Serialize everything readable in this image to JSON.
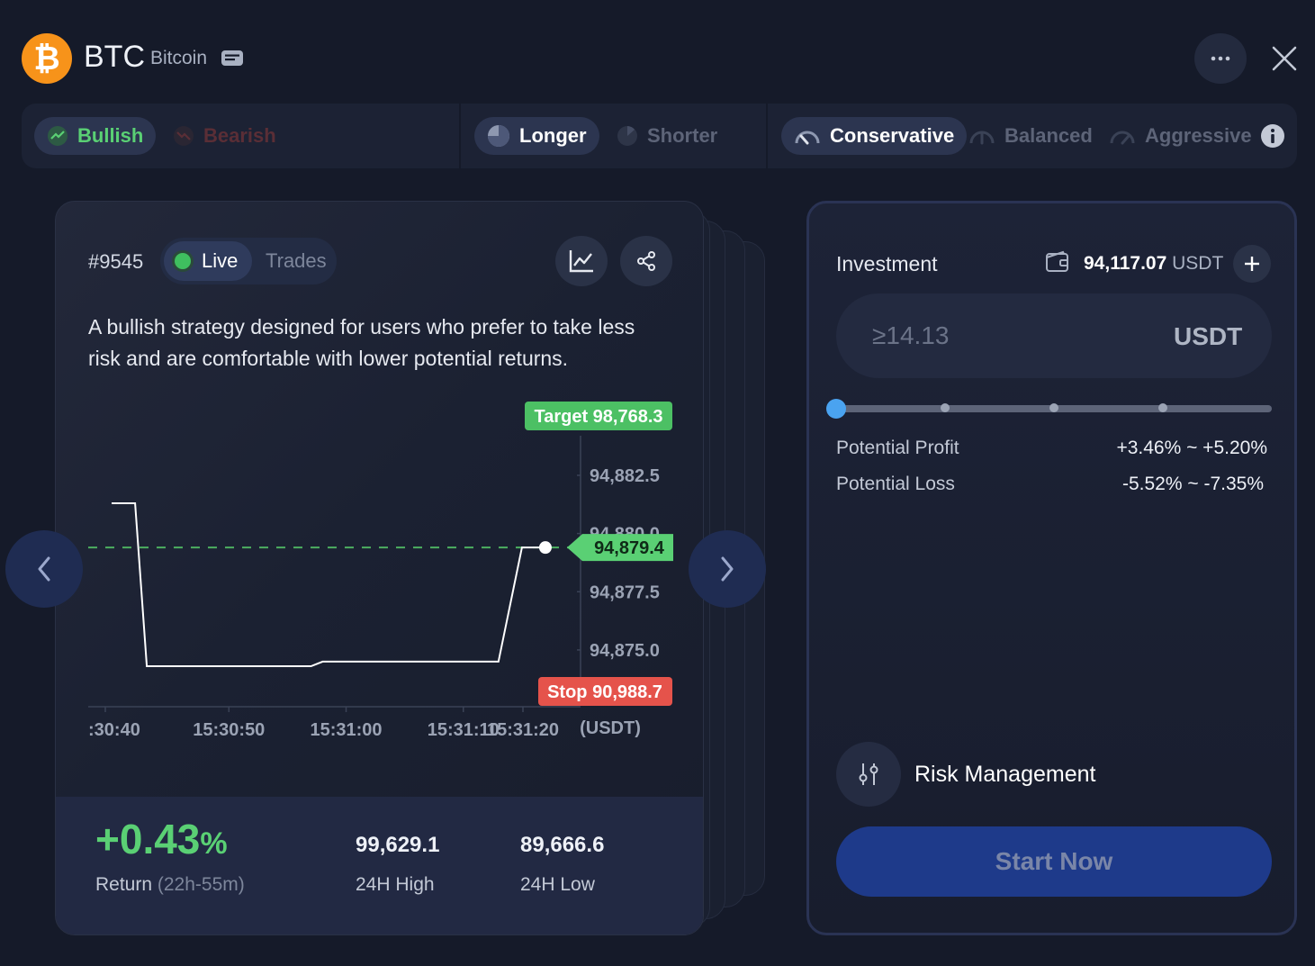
{
  "header": {
    "symbol": "BTC",
    "name": "Bitcoin",
    "logo_glyph": "₿"
  },
  "filters": {
    "direction": [
      {
        "label": "Bullish",
        "active": true
      },
      {
        "label": "Bearish",
        "active": false
      }
    ],
    "duration": [
      {
        "label": "Longer",
        "active": true
      },
      {
        "label": "Shorter",
        "active": false
      }
    ],
    "risk": [
      {
        "label": "Conservative",
        "active": true
      },
      {
        "label": "Balanced",
        "active": false
      },
      {
        "label": "Aggressive",
        "active": false
      }
    ]
  },
  "card": {
    "id": "#9545",
    "toggle": {
      "live": "Live",
      "trades": "Trades"
    },
    "description": "A bullish strategy designed for users who prefer to take less risk and are comfortable with lower potential returns.",
    "return_value": "+0.43",
    "return_unit": "%",
    "return_label": "Return",
    "return_period": "(22h-55m)",
    "high_value": "99,629.1",
    "high_label": "24H High",
    "low_value": "89,666.6",
    "low_label": "24H Low"
  },
  "chart_data": {
    "type": "line",
    "x_ticks": [
      ":30:40",
      "15:30:50",
      "15:31:00",
      "15:31:10",
      "15:31:20"
    ],
    "y_ticks": [
      "94,882.5",
      "94,880.0",
      "94,877.5",
      "94,875.0"
    ],
    "unit": "(USDT)",
    "target_label": "Target 98,768.3",
    "stop_label": "Stop 90,988.7",
    "current_label": "94,879.4",
    "current_price": 94879.4,
    "ylim": [
      94872.6,
      94884.2
    ],
    "points": [
      [
        "15:30:40",
        94881.3
      ],
      [
        "15:30:42",
        94881.3
      ],
      [
        "15:30:43",
        94874.3
      ],
      [
        "15:30:57",
        94874.3
      ],
      [
        "15:30:58",
        94874.5
      ],
      [
        "15:31:13",
        94874.5
      ],
      [
        "15:31:15",
        94879.4
      ],
      [
        "15:31:17",
        94879.4
      ]
    ]
  },
  "panel": {
    "investment_label": "Investment",
    "balance_value": "94,117.07",
    "balance_unit": "USDT",
    "input_placeholder": "≥14.13",
    "input_unit": "USDT",
    "profit_label": "Potential Profit",
    "profit_value": "+3.46% ~ +5.20%",
    "loss_label": "Potential Loss",
    "loss_value": "-5.52% ~ -7.35%",
    "risk_label": "Risk Management",
    "start_label": "Start Now",
    "slider_level": 0
  },
  "colors": {
    "bullish": "#5ad074",
    "stop": "#e5534b",
    "accent": "#1e3a8a"
  }
}
